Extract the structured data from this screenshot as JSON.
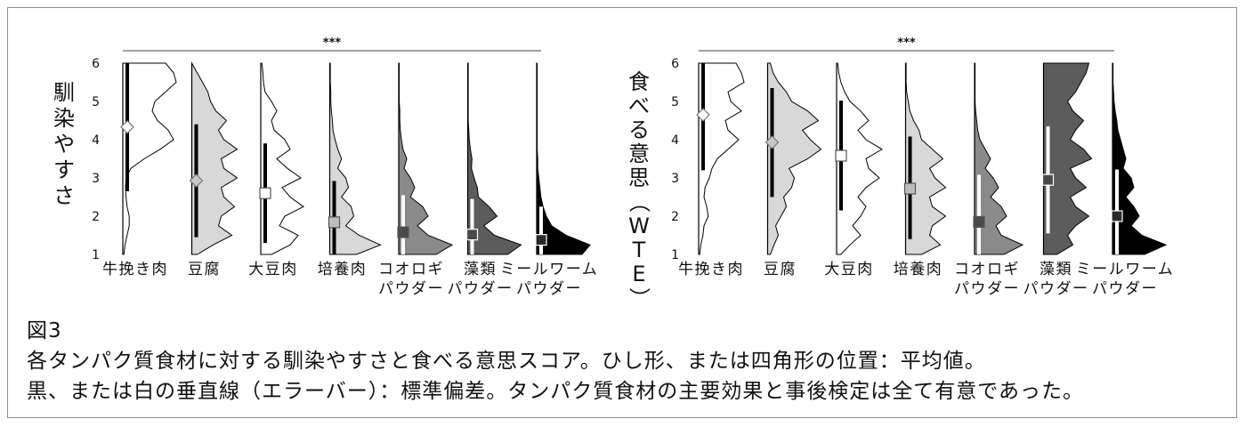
{
  "caption": {
    "figure_label": "図3",
    "line1": "各タンパク質食材に対する馴染やすさと食べる意思スコア。ひし形、または四角形の位置：平均値。",
    "line2": "黒、または白の垂直線（エラーバー）：標準偏差。タンパク質食材の主要効果と事後検定は全て有意であった。"
  },
  "chart_data": [
    {
      "type": "violin",
      "ylabel": "馴染やすさ",
      "ylim": [
        1,
        6
      ],
      "yticks": [
        1,
        2,
        3,
        4,
        5,
        6
      ],
      "significance": "***",
      "categories": [
        {
          "lines": [
            "牛挽き肉"
          ],
          "fill": "#ffffff",
          "marker": "diamond",
          "mean": 4.33,
          "sd_low": 2.65,
          "sd_high": 6.0,
          "bar_color": "#000000",
          "density": [
            0.02,
            0.04,
            0.08,
            0.12,
            0.12,
            0.08,
            0.06,
            0.05,
            0.06,
            0.15,
            0.4,
            0.7,
            0.95,
            0.85,
            0.65,
            0.55,
            0.6,
            0.8,
            1.0,
            0.95,
            0.8
          ]
        },
        {
          "lines": [
            "豆腐"
          ],
          "fill": "#d8d8d8",
          "marker": "diamond",
          "mean": 2.93,
          "sd_low": 1.45,
          "sd_high": 4.4,
          "bar_color": "#000000",
          "density": [
            0.1,
            0.4,
            0.75,
            0.5,
            0.55,
            0.8,
            0.6,
            0.55,
            0.85,
            0.6,
            0.55,
            0.85,
            0.6,
            0.5,
            0.65,
            0.45,
            0.35,
            0.3,
            0.2,
            0.1,
            0.0
          ]
        },
        {
          "lines": [
            "大豆肉"
          ],
          "fill": "#ffffff",
          "marker": "square",
          "mean": 2.6,
          "sd_low": 1.3,
          "sd_high": 3.9,
          "bar_color": "#000000",
          "density": [
            0.2,
            0.55,
            0.7,
            0.35,
            0.45,
            0.8,
            0.55,
            0.4,
            0.75,
            0.5,
            0.3,
            0.55,
            0.45,
            0.25,
            0.2,
            0.3,
            0.2,
            0.08,
            0.05,
            0.04,
            0.02
          ]
        },
        {
          "lines": [
            "培養肉"
          ],
          "fill": "#d8d8d8",
          "marker": "square",
          "mean": 1.84,
          "sd_low": 1.0,
          "sd_high": 2.92,
          "bar_color": "#000000",
          "density": [
            0.5,
            0.95,
            0.55,
            0.3,
            0.45,
            0.4,
            0.22,
            0.35,
            0.3,
            0.15,
            0.22,
            0.15,
            0.1,
            0.06,
            0.05,
            0.03,
            0.02,
            0.02,
            0.01,
            0.01,
            0.01
          ]
        },
        {
          "lines": [
            "コオロギ",
            "パウダー"
          ],
          "fill": "#8a8a8a",
          "marker": "square",
          "mean": 1.58,
          "sd_low": 1.0,
          "sd_high": 2.55,
          "bar_color": "#ffffff",
          "density": [
            0.7,
            1.0,
            0.55,
            0.35,
            0.55,
            0.45,
            0.22,
            0.3,
            0.22,
            0.1,
            0.15,
            0.08,
            0.05,
            0.03,
            0.02,
            0.02,
            0.01,
            0.01,
            0.01,
            0.01,
            0.01
          ]
        },
        {
          "lines": [
            "藻類",
            "パウダー"
          ],
          "fill": "#5c5c5c",
          "marker": "square",
          "mean": 1.52,
          "sd_low": 1.0,
          "sd_high": 2.45,
          "bar_color": "#ffffff",
          "density": [
            0.75,
            1.0,
            0.5,
            0.3,
            0.55,
            0.4,
            0.2,
            0.18,
            0.12,
            0.07,
            0.08,
            0.05,
            0.03,
            0.02,
            0.01,
            0.01,
            0.01,
            0.01,
            0.01,
            0.01,
            0.01
          ]
        },
        {
          "lines": [
            "ミールワーム",
            "パウダー"
          ],
          "fill": "#000000",
          "marker": "square",
          "mean": 1.38,
          "sd_low": 1.0,
          "sd_high": 2.25,
          "bar_color": "#ffffff",
          "density": [
            0.85,
            1.0,
            0.55,
            0.28,
            0.18,
            0.12,
            0.08,
            0.06,
            0.04,
            0.02,
            0.02,
            0.01,
            0.01,
            0.01,
            0.01,
            0.01,
            0.01,
            0.01,
            0.01,
            0.01,
            0.01
          ]
        }
      ]
    },
    {
      "type": "violin",
      "ylabel": "食べる意思（WTE）",
      "ylim": [
        1,
        6
      ],
      "yticks": [
        1,
        2,
        3,
        4,
        5,
        6
      ],
      "significance": "***",
      "categories": [
        {
          "lines": [
            "牛挽き肉"
          ],
          "fill": "#ffffff",
          "marker": "diamond",
          "mean": 4.65,
          "sd_low": 3.2,
          "sd_high": 6.0,
          "bar_color": "#000000",
          "density": [
            0.02,
            0.04,
            0.08,
            0.1,
            0.18,
            0.15,
            0.1,
            0.12,
            0.2,
            0.25,
            0.35,
            0.55,
            0.75,
            0.55,
            0.5,
            0.8,
            0.6,
            0.55,
            0.85,
            0.8,
            0.7
          ]
        },
        {
          "lines": [
            "豆腐"
          ],
          "fill": "#d8d8d8",
          "marker": "diamond",
          "mean": 3.93,
          "sd_low": 2.5,
          "sd_high": 5.35,
          "bar_color": "#000000",
          "density": [
            0.05,
            0.12,
            0.2,
            0.15,
            0.25,
            0.35,
            0.3,
            0.45,
            0.5,
            0.4,
            0.75,
            1.0,
            0.8,
            0.65,
            0.95,
            0.75,
            0.45,
            0.35,
            0.2,
            0.1,
            0.05
          ]
        },
        {
          "lines": [
            "大豆肉"
          ],
          "fill": "#ffffff",
          "marker": "square",
          "mean": 3.58,
          "sd_low": 2.15,
          "sd_high": 5.02,
          "bar_color": "#000000",
          "density": [
            0.08,
            0.25,
            0.45,
            0.3,
            0.45,
            0.55,
            0.4,
            0.55,
            0.8,
            0.6,
            0.55,
            0.85,
            0.55,
            0.4,
            0.6,
            0.45,
            0.25,
            0.15,
            0.08,
            0.04,
            0.02
          ]
        },
        {
          "lines": [
            "培養肉"
          ],
          "fill": "#d8d8d8",
          "marker": "square",
          "mean": 2.72,
          "sd_low": 1.4,
          "sd_high": 4.08,
          "bar_color": "#000000",
          "density": [
            0.3,
            0.65,
            0.45,
            0.5,
            0.75,
            0.5,
            0.45,
            0.75,
            0.55,
            0.45,
            0.7,
            0.5,
            0.3,
            0.25,
            0.15,
            0.08,
            0.05,
            0.02,
            0.01,
            0.01,
            0.01
          ]
        },
        {
          "lines": [
            "コオロギ",
            "パウダー"
          ],
          "fill": "#8a8a8a",
          "marker": "square",
          "mean": 1.85,
          "sd_low": 1.0,
          "sd_high": 3.08,
          "bar_color": "#ffffff",
          "density": [
            0.55,
            0.9,
            0.5,
            0.4,
            0.6,
            0.5,
            0.3,
            0.45,
            0.35,
            0.2,
            0.3,
            0.2,
            0.1,
            0.06,
            0.04,
            0.02,
            0.01,
            0.01,
            0.01,
            0.01,
            0.01
          ]
        },
        {
          "lines": [
            "藻類",
            "パウダー"
          ],
          "fill": "#5c5c5c",
          "marker": "square",
          "mean": 2.95,
          "sd_low": 1.55,
          "sd_high": 4.35,
          "bar_color": "#ffffff",
          "density": [
            0.25,
            0.55,
            0.45,
            0.6,
            0.85,
            0.6,
            0.5,
            0.8,
            0.6,
            0.5,
            0.9,
            0.75,
            0.5,
            0.6,
            0.75,
            0.55,
            0.45,
            0.6,
            0.7,
            0.8,
            0.85
          ]
        },
        {
          "lines": [
            "ミールワーム",
            "パウダー"
          ],
          "fill": "#000000",
          "marker": "square",
          "mean": 2.0,
          "sd_low": 1.0,
          "sd_high": 3.22,
          "bar_color": "#ffffff",
          "density": [
            0.6,
            1.0,
            0.55,
            0.35,
            0.5,
            0.4,
            0.25,
            0.4,
            0.35,
            0.2,
            0.25,
            0.2,
            0.15,
            0.1,
            0.08,
            0.05,
            0.03,
            0.02,
            0.01,
            0.01,
            0.01
          ]
        }
      ]
    }
  ]
}
